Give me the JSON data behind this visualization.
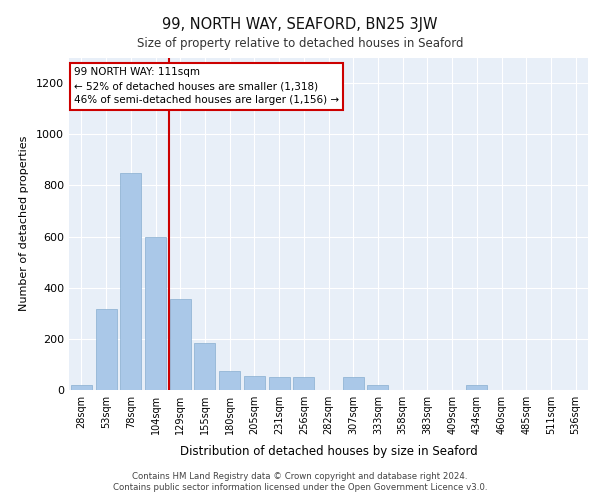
{
  "title1": "99, NORTH WAY, SEAFORD, BN25 3JW",
  "title2": "Size of property relative to detached houses in Seaford",
  "xlabel": "Distribution of detached houses by size in Seaford",
  "ylabel": "Number of detached properties",
  "categories": [
    "28sqm",
    "53sqm",
    "78sqm",
    "104sqm",
    "129sqm",
    "155sqm",
    "180sqm",
    "205sqm",
    "231sqm",
    "256sqm",
    "282sqm",
    "307sqm",
    "333sqm",
    "358sqm",
    "383sqm",
    "409sqm",
    "434sqm",
    "460sqm",
    "485sqm",
    "511sqm",
    "536sqm"
  ],
  "values": [
    20,
    315,
    850,
    600,
    355,
    185,
    75,
    55,
    50,
    50,
    0,
    50,
    20,
    0,
    0,
    0,
    20,
    0,
    0,
    0,
    0
  ],
  "bar_color": "#aac8e8",
  "bar_edge_color": "#88aed0",
  "vline_x": 3.55,
  "vline_color": "#cc0000",
  "annotation_text": "99 NORTH WAY: 111sqm\n← 52% of detached houses are smaller (1,318)\n46% of semi-detached houses are larger (1,156) →",
  "annotation_box_facecolor": "#ffffff",
  "annotation_box_edgecolor": "#cc0000",
  "ylim": [
    0,
    1300
  ],
  "yticks": [
    0,
    200,
    400,
    600,
    800,
    1000,
    1200
  ],
  "plot_bg_color": "#e8eff8",
  "footer1": "Contains HM Land Registry data © Crown copyright and database right 2024.",
  "footer2": "Contains public sector information licensed under the Open Government Licence v3.0."
}
